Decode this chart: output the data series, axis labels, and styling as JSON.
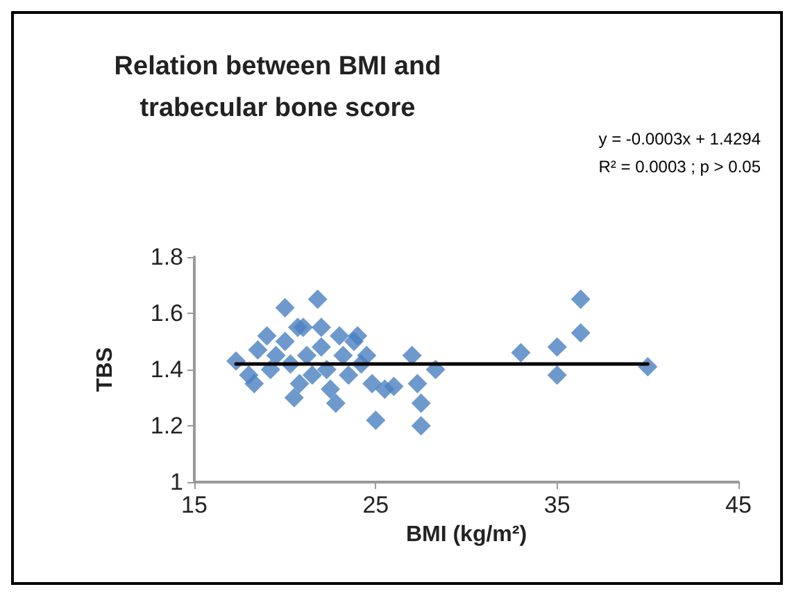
{
  "chart_data": {
    "type": "scatter",
    "title": "Relation between BMI and\ntrabecular bone score",
    "xlabel": "BMI (kg/m²)",
    "ylabel": "TBS",
    "xlim": [
      15,
      45
    ],
    "xticks": [
      15,
      25,
      35,
      45
    ],
    "ylim": [
      1,
      1.8
    ],
    "yticks": [
      1,
      1.2,
      1.4,
      1.6,
      1.8
    ],
    "grid": false,
    "marker": "diamond",
    "annotations": [
      "y = -0.0003x + 1.4294",
      "R² = 0.0003 ; p > 0.05"
    ],
    "series": [
      {
        "color": "#4a7fc0",
        "x": [
          17.3,
          18,
          18.3,
          18.5,
          19,
          19.2,
          19.5,
          20,
          20,
          20.3,
          20.5,
          20.7,
          20.8,
          21,
          21.2,
          21.5,
          21.8,
          22,
          22,
          22.3,
          22.5,
          22.8,
          23,
          23.2,
          23.5,
          23.8,
          24,
          24.2,
          24.5,
          24.8,
          25,
          25.5,
          26,
          27,
          27.3,
          27.5,
          27.5,
          28.3,
          33,
          35,
          35,
          36.3,
          36.3,
          40
        ],
        "values": [
          1.43,
          1.38,
          1.35,
          1.47,
          1.52,
          1.4,
          1.45,
          1.62,
          1.5,
          1.42,
          1.3,
          1.55,
          1.35,
          1.55,
          1.45,
          1.38,
          1.65,
          1.55,
          1.48,
          1.4,
          1.33,
          1.28,
          1.52,
          1.45,
          1.38,
          1.5,
          1.52,
          1.42,
          1.45,
          1.35,
          1.22,
          1.33,
          1.34,
          1.45,
          1.35,
          1.28,
          1.2,
          1.4,
          1.46,
          1.48,
          1.38,
          1.53,
          1.65,
          1.41
        ]
      },
      {
        "type": "line",
        "color": "#000000",
        "marker": "none",
        "line_style": "solid",
        "x": [
          17.3,
          40
        ],
        "values": [
          1.42,
          1.42
        ]
      }
    ]
  }
}
